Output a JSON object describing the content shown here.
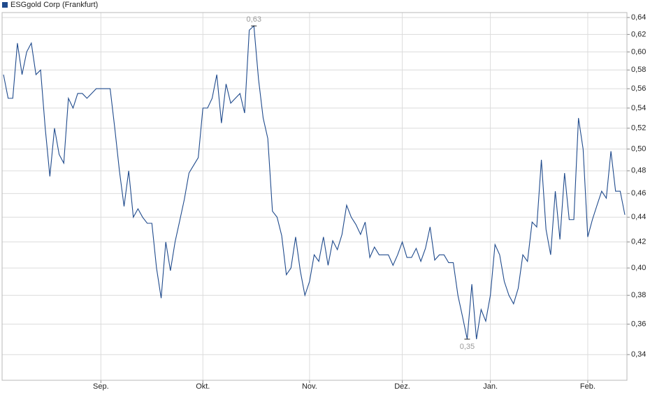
{
  "chart_data": {
    "type": "line",
    "categories": [
      null,
      null,
      null,
      null,
      null,
      null,
      null,
      null,
      null,
      null,
      null,
      null,
      null,
      null,
      null,
      null,
      null,
      null,
      null,
      null,
      null,
      "Sep.",
      null,
      null,
      null,
      null,
      null,
      null,
      null,
      null,
      null,
      null,
      null,
      null,
      null,
      null,
      null,
      null,
      null,
      null,
      null,
      null,
      null,
      "Okt.",
      null,
      null,
      null,
      null,
      null,
      null,
      null,
      null,
      null,
      null,
      null,
      null,
      null,
      null,
      null,
      null,
      null,
      null,
      null,
      null,
      null,
      null,
      "Nov.",
      null,
      null,
      null,
      null,
      null,
      null,
      null,
      null,
      null,
      null,
      null,
      null,
      null,
      null,
      null,
      null,
      null,
      null,
      null,
      "Dez.",
      null,
      null,
      null,
      null,
      null,
      null,
      null,
      null,
      null,
      null,
      null,
      null,
      null,
      null,
      null,
      null,
      null,
      null,
      "Jan.",
      null,
      null,
      null,
      null,
      null,
      null,
      null,
      null,
      null,
      null,
      null,
      null,
      null,
      null,
      null,
      null,
      null,
      null,
      null,
      null,
      "Feb.",
      null,
      null,
      null,
      null,
      null,
      null,
      null,
      null
    ],
    "series": [
      {
        "name": "ESGgold Corp (Frankfurt)",
        "color": "#1f4a8c",
        "values": [
          0.575,
          0.55,
          0.55,
          0.61,
          0.575,
          0.6,
          0.61,
          0.575,
          0.58,
          0.52,
          0.475,
          0.52,
          0.495,
          0.487,
          0.55,
          0.54,
          0.555,
          0.555,
          0.55,
          0.555,
          0.56,
          0.56,
          0.56,
          0.56,
          0.52,
          0.48,
          0.449,
          0.48,
          0.44,
          0.447,
          0.44,
          0.435,
          0.435,
          0.4,
          0.378,
          0.42,
          0.398,
          0.42,
          0.437,
          0.455,
          0.478,
          0.485,
          0.492,
          0.54,
          0.54,
          0.55,
          0.575,
          0.525,
          0.565,
          0.545,
          0.55,
          0.555,
          0.535,
          0.625,
          0.63,
          0.57,
          0.53,
          0.51,
          0.445,
          0.44,
          0.425,
          0.395,
          0.4,
          0.424,
          0.398,
          0.38,
          0.39,
          0.41,
          0.405,
          0.424,
          0.402,
          0.421,
          0.414,
          0.426,
          0.45,
          0.44,
          0.434,
          0.426,
          0.436,
          0.408,
          0.416,
          0.41,
          0.41,
          0.41,
          0.402,
          0.41,
          0.42,
          0.408,
          0.408,
          0.415,
          0.405,
          0.415,
          0.432,
          0.406,
          0.41,
          0.41,
          0.404,
          0.404,
          0.38,
          0.365,
          0.35,
          0.388,
          0.35,
          0.37,
          0.362,
          0.38,
          0.418,
          0.41,
          0.39,
          0.38,
          0.374,
          0.385,
          0.41,
          0.405,
          0.436,
          0.432,
          0.49,
          0.43,
          0.41,
          0.462,
          0.422,
          0.478,
          0.438,
          0.438,
          0.53,
          0.5,
          0.424,
          0.438,
          0.45,
          0.462,
          0.456,
          0.498,
          0.462,
          0.462,
          0.442
        ],
        "value_labels": [
          null,
          null,
          null,
          null,
          null,
          null,
          null,
          null,
          null,
          null,
          null,
          null,
          null,
          null,
          null,
          null,
          null,
          null,
          null,
          null,
          null,
          null,
          null,
          null,
          null,
          null,
          null,
          null,
          null,
          null,
          null,
          null,
          null,
          null,
          null,
          null,
          null,
          null,
          null,
          null,
          null,
          null,
          null,
          null,
          null,
          null,
          null,
          null,
          null,
          null,
          null,
          null,
          null,
          null,
          "0,63",
          null,
          null,
          null,
          null,
          null,
          null,
          null,
          null,
          null,
          null,
          null,
          null,
          null,
          null,
          null,
          null,
          null,
          null,
          null,
          null,
          null,
          null,
          null,
          null,
          null,
          null,
          null,
          null,
          null,
          null,
          null,
          null,
          null,
          null,
          null,
          null,
          null,
          null,
          null,
          null,
          null,
          null,
          null,
          null,
          null,
          "0,35",
          null,
          null,
          null,
          null,
          null,
          null,
          null,
          null,
          null,
          null,
          null,
          null,
          null,
          null,
          null,
          null,
          null,
          null,
          null,
          null,
          null,
          null,
          null,
          null,
          null,
          null,
          null,
          null,
          null,
          null,
          null,
          null,
          null,
          null
        ]
      }
    ],
    "ylim": [
      0.324,
      0.646
    ],
    "log_y": true,
    "grid": true,
    "legend": "top-left",
    "yticks": [
      {
        "value": 0.34,
        "label": "0,34"
      },
      {
        "value": 0.36,
        "label": "0,36"
      },
      {
        "value": 0.38,
        "label": "0,38"
      },
      {
        "value": 0.4,
        "label": "0,40"
      },
      {
        "value": 0.42,
        "label": "0,42"
      },
      {
        "value": 0.44,
        "label": "0,44"
      },
      {
        "value": 0.46,
        "label": "0,46"
      },
      {
        "value": 0.48,
        "label": "0,48"
      },
      {
        "value": 0.5,
        "label": "0,50"
      },
      {
        "value": 0.52,
        "label": "0,52"
      },
      {
        "value": 0.54,
        "label": "0,54"
      },
      {
        "value": 0.56,
        "label": "0,56"
      },
      {
        "value": 0.58,
        "label": "0,58"
      },
      {
        "value": 0.6,
        "label": "0,60"
      },
      {
        "value": 0.62,
        "label": "0,62"
      },
      {
        "value": 0.64,
        "label": "0,64"
      }
    ]
  }
}
